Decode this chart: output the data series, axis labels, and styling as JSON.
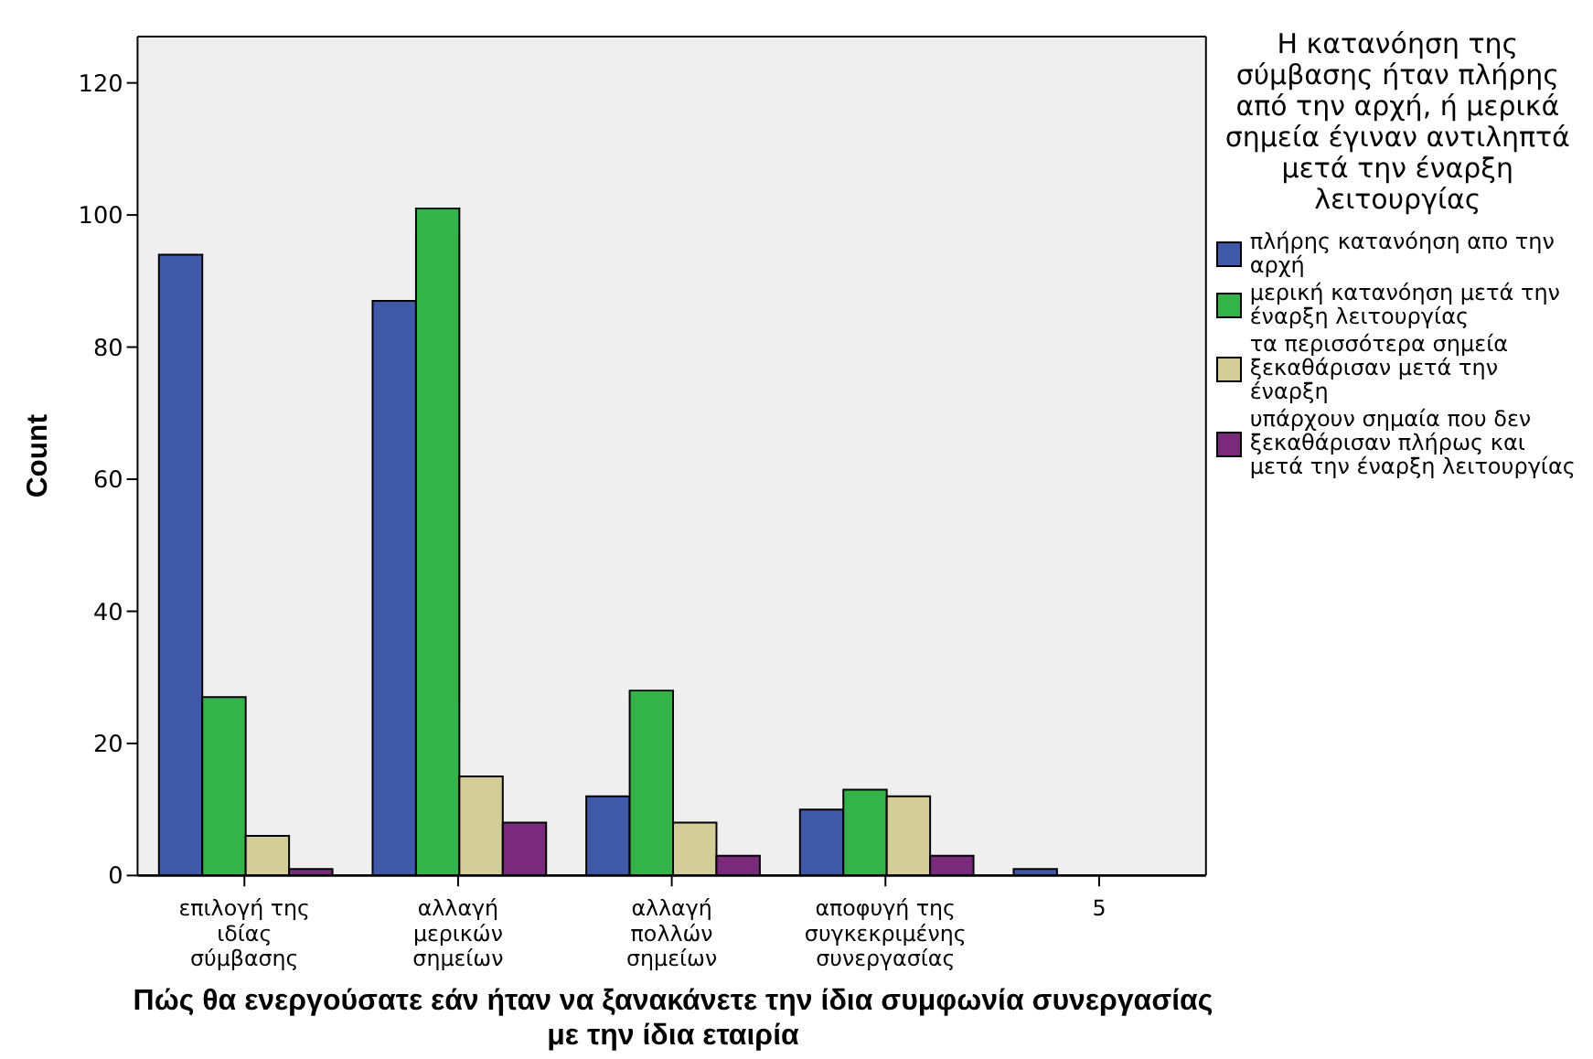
{
  "chart_data": {
    "type": "bar",
    "xlabel": "Πώς θα ενεργούσατε εάν ήταν να ξανακάνετε την ίδια συμφωνία συνεργασίας με την ίδια εταιρία",
    "ylabel": "Count",
    "legend_title": "Η κατανόηση της σύμβασης ήταν πλήρης από την αρχή, ή μερικά σημεία έγιναν αντιληπτά μετά την έναρξη λειτουργίας",
    "categories": [
      "επιλογή της ιδίας σύμβασης",
      "αλλαγή μερικών σημείων",
      "αλλαγή πολλών σημείων",
      "αποφυγή της συγκεκριμένης συνεργασίας",
      "5"
    ],
    "series": [
      {
        "name": "πλήρης κατανόηση απο την αρχή",
        "color": "#3f58a8",
        "values": [
          94,
          87,
          12,
          10,
          1
        ]
      },
      {
        "name": "μερική κατανόηση μετά την έναρξη λειτουργίας",
        "color": "#33b34a",
        "values": [
          27,
          101,
          28,
          13,
          0
        ]
      },
      {
        "name": "τα περισσότερα σημεία ξεκαθάρισαν μετά την έναρξη",
        "color": "#d3ce97",
        "values": [
          6,
          15,
          8,
          12,
          0
        ]
      },
      {
        "name": "υπάρχουν σημαία που δεν ξεκαθάρισαν πλήρως και μετά την έναρξη λειτουργίας",
        "color": "#7a2a7a",
        "values": [
          1,
          8,
          3,
          3,
          0
        ]
      }
    ],
    "ylim": [
      0,
      127
    ],
    "yticks": [
      0,
      20,
      40,
      60,
      80,
      100,
      120
    ],
    "legend": "top right"
  }
}
